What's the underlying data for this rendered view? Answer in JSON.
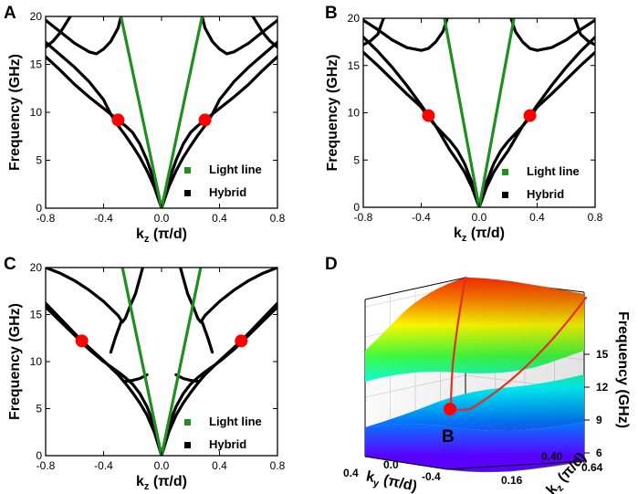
{
  "chart_data": [
    {
      "panel": "A",
      "type": "line",
      "xlabel": "kz (π/d)",
      "ylabel": "Frequency (GHz)",
      "xlim": [
        -0.8,
        0.8
      ],
      "ylim": [
        0,
        20
      ],
      "xticks": [
        -0.8,
        -0.4,
        0.0,
        0.4,
        0.8
      ],
      "yticks": [
        0,
        5,
        10,
        15,
        20
      ],
      "xtick_labels": [
        "-0.8",
        "-0.4",
        "0.0",
        "0.4",
        "0.8"
      ],
      "ytick_labels": [
        "0",
        "5",
        "10",
        "15",
        "20"
      ],
      "legend": [
        "Light line",
        "Hybrid"
      ],
      "light_line_top_k": 0.28,
      "series": [
        {
          "name": "Hybrid",
          "x": [
            0,
            0.05,
            0.1,
            0.15,
            0.2,
            0.25,
            0.3,
            0.4,
            0.5,
            0.6,
            0.7,
            0.8
          ],
          "y": [
            0,
            2.8,
            5.0,
            6.7,
            7.9,
            8.6,
            9.2,
            10.4,
            11.6,
            12.9,
            14.4,
            15.8
          ]
        },
        {
          "name": "Hybrid",
          "x": [
            0,
            0.05,
            0.1,
            0.15,
            0.2,
            0.25,
            0.3,
            0.35,
            0.4,
            0.5,
            0.6,
            0.7,
            0.8
          ],
          "y": [
            0,
            2.2,
            3.9,
            5.3,
            6.5,
            7.6,
            8.6,
            9.8,
            11.3,
            13.2,
            14.7,
            16.0,
            17.3
          ]
        },
        {
          "name": "Hybrid",
          "x": [
            0.28,
            0.3,
            0.35,
            0.4,
            0.45,
            0.5,
            0.6,
            0.7,
            0.8
          ],
          "y": [
            20,
            18.8,
            17.4,
            16.6,
            16.1,
            16.3,
            17.2,
            18.4,
            19.6
          ]
        },
        {
          "name": "Hybrid",
          "x": [
            0.63,
            0.7,
            0.75,
            0.8
          ],
          "y": [
            20,
            18.3,
            17.4,
            16.8
          ]
        }
      ],
      "crossings": [
        {
          "x": -0.3,
          "y": 9.2
        },
        {
          "x": 0.3,
          "y": 9.2
        }
      ]
    },
    {
      "panel": "B",
      "type": "line",
      "xlabel": "kz (π/d)",
      "ylabel": "Frequency (GHz)",
      "xlim": [
        -0.8,
        0.8
      ],
      "ylim": [
        0,
        20
      ],
      "xticks": [
        -0.8,
        -0.4,
        0.0,
        0.4,
        0.8
      ],
      "yticks": [
        0,
        5,
        10,
        15,
        20
      ],
      "xtick_labels": [
        "-0.8",
        "-0.4",
        "0.0",
        "0.4",
        "0.8"
      ],
      "ytick_labels": [
        "0",
        "5",
        "10",
        "15",
        "20"
      ],
      "legend": [
        "Light line",
        "Hybrid"
      ],
      "light_line_top_k": 0.24,
      "series": [
        {
          "name": "Hybrid",
          "x": [
            0,
            0.05,
            0.1,
            0.15,
            0.2,
            0.25,
            0.3,
            0.35,
            0.4,
            0.5,
            0.6,
            0.7,
            0.8
          ],
          "y": [
            0,
            2.6,
            4.6,
            6.0,
            7.0,
            7.8,
            8.6,
            9.5,
            10.6,
            12.0,
            13.5,
            15.0,
            16.4
          ]
        },
        {
          "name": "Hybrid",
          "x": [
            0,
            0.05,
            0.1,
            0.15,
            0.2,
            0.25,
            0.3,
            0.35,
            0.4,
            0.5,
            0.6,
            0.7,
            0.8
          ],
          "y": [
            0,
            2.1,
            3.7,
            4.9,
            6.0,
            7.3,
            8.6,
            9.7,
            10.8,
            12.9,
            14.8,
            16.5,
            18.0
          ]
        },
        {
          "name": "Hybrid",
          "x": [
            0.22,
            0.25,
            0.3,
            0.35,
            0.4,
            0.5,
            0.6,
            0.7,
            0.8
          ],
          "y": [
            20,
            18.6,
            17.5,
            16.8,
            16.6,
            16.9,
            17.7,
            18.8,
            19.8
          ]
        },
        {
          "name": "Hybrid",
          "x": [
            0.66,
            0.7,
            0.75,
            0.8
          ],
          "y": [
            20,
            18.3,
            17.6,
            17.2
          ]
        }
      ],
      "crossings": [
        {
          "x": -0.35,
          "y": 9.7
        },
        {
          "x": 0.35,
          "y": 9.7
        }
      ]
    },
    {
      "panel": "C",
      "type": "line",
      "xlabel": "kz (π/d)",
      "ylabel": "Frequency (GHz)",
      "xlim": [
        -0.8,
        0.8
      ],
      "ylim": [
        0,
        20
      ],
      "xticks": [
        -0.8,
        -0.4,
        0.0,
        0.4,
        0.8
      ],
      "yticks": [
        0,
        5,
        10,
        15,
        20
      ],
      "xtick_labels": [
        "-0.8",
        "-0.4",
        "0.0",
        "0.4",
        "0.8"
      ],
      "ytick_labels": [
        "0",
        "5",
        "10",
        "15",
        "20"
      ],
      "legend": [
        "Light line",
        "Hybrid"
      ],
      "light_line_top_k": 0.27,
      "series": [
        {
          "name": "Hybrid",
          "x": [
            0,
            0.05,
            0.1,
            0.15,
            0.2,
            0.25,
            0.3,
            0.4,
            0.5,
            0.55,
            0.6,
            0.7,
            0.8
          ],
          "y": [
            0,
            3.2,
            5.2,
            6.6,
            7.6,
            8.3,
            8.9,
            10.0,
            11.3,
            12.0,
            12.8,
            14.3,
            15.8
          ]
        },
        {
          "name": "Hybrid",
          "x": [
            0,
            0.05,
            0.1,
            0.15,
            0.2,
            0.25,
            0.3,
            0.4,
            0.5,
            0.55,
            0.6,
            0.7,
            0.8
          ],
          "y": [
            0,
            2.5,
            4.3,
            5.6,
            6.7,
            7.7,
            8.6,
            10.1,
            11.5,
            12.2,
            13.0,
            14.6,
            16.2
          ]
        },
        {
          "name": "Hybrid",
          "x": [
            0.13,
            0.18,
            0.22,
            0.25,
            0.27,
            0.3,
            0.4,
            0.5,
            0.6,
            0.7,
            0.8
          ],
          "y": [
            20,
            17.2,
            15.8,
            14.6,
            14.2,
            14.9,
            16.4,
            17.6,
            18.6,
            19.4,
            20
          ]
        },
        {
          "name": "Hybrid",
          "x": [
            0.28,
            0.32,
            0.35
          ],
          "y": [
            14.2,
            12.5,
            11.0
          ]
        },
        {
          "name": "Hybrid",
          "x": [
            0.1,
            0.15,
            0.2,
            0.25
          ],
          "y": [
            8.6,
            8.2,
            8.0,
            7.9
          ]
        }
      ],
      "crossings": [
        {
          "x": -0.55,
          "y": 12.2
        },
        {
          "x": 0.55,
          "y": 12.2
        }
      ]
    },
    {
      "panel": "D",
      "type": "surface",
      "xlabel": "ky (π/d)",
      "ylabel": "kz (π/d)",
      "zlabel": "Frequency (GHz)",
      "xticks": [
        0.4,
        0.0,
        -0.4
      ],
      "yticks": [
        0.16,
        0.4,
        0.64
      ],
      "zticks": [
        6,
        9,
        12,
        15
      ],
      "xtick_labels": [
        "0.4",
        "0.0",
        "-0.4"
      ],
      "ytick_labels": [
        "0.16",
        "0.40",
        "0.64"
      ],
      "ztick_labels": [
        "6",
        "9",
        "12",
        "15"
      ],
      "point_label": "B",
      "colorscale": [
        "#5a00ff",
        "#0080ff",
        "#00ffff",
        "#40ff40",
        "#ffff00",
        "#ff8000",
        "#ff2000"
      ]
    }
  ],
  "colors": {
    "hybrid": "#000000",
    "light_line": "#1f8f1f",
    "crossing": "#ff0000",
    "curve_3d": "#e03020"
  }
}
